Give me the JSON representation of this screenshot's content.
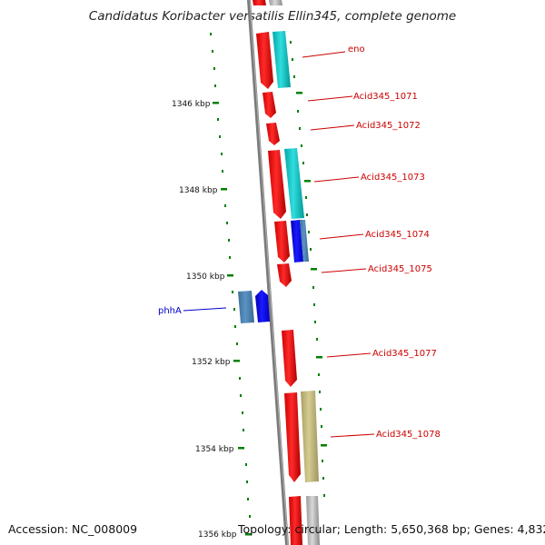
{
  "title": "Candidatus Koribacter versatilis Ellin345, complete genome",
  "footer": {
    "accession": "Accession: NC_008009",
    "topology": "Topology: circular; Length: 5,650,368 bp; Genes: 4,832"
  },
  "ticks": [
    {
      "label": "1346 kbp"
    },
    {
      "label": "1348 kbp"
    },
    {
      "label": "1350 kbp"
    },
    {
      "label": "1352 kbp"
    },
    {
      "label": "1354 kbp"
    },
    {
      "label": "1356 kbp"
    }
  ],
  "gene_labels": [
    {
      "name": "eno",
      "color": "#cc0000"
    },
    {
      "name": "Acid345_1071",
      "color": "#cc0000"
    },
    {
      "name": "Acid345_1072",
      "color": "#cc0000"
    },
    {
      "name": "Acid345_1073",
      "color": "#cc0000"
    },
    {
      "name": "Acid345_1074",
      "color": "#cc0000"
    },
    {
      "name": "Acid345_1075",
      "color": "#cc0000"
    },
    {
      "name": "phhA",
      "color": "#0000cc"
    },
    {
      "name": "Acid345_1077",
      "color": "#cc0000"
    },
    {
      "name": "Acid345_1078",
      "color": "#cc0000"
    }
  ],
  "colors": {
    "cds": "#ff0000",
    "rna": "#00cccc",
    "blue_feature": "#0000ff",
    "steel_feature": "#4682b4",
    "olive_feature": "#c8c084",
    "gray_feature": "#c0c0c0",
    "tick": "#006400",
    "backbone": "#7f7f7f"
  }
}
